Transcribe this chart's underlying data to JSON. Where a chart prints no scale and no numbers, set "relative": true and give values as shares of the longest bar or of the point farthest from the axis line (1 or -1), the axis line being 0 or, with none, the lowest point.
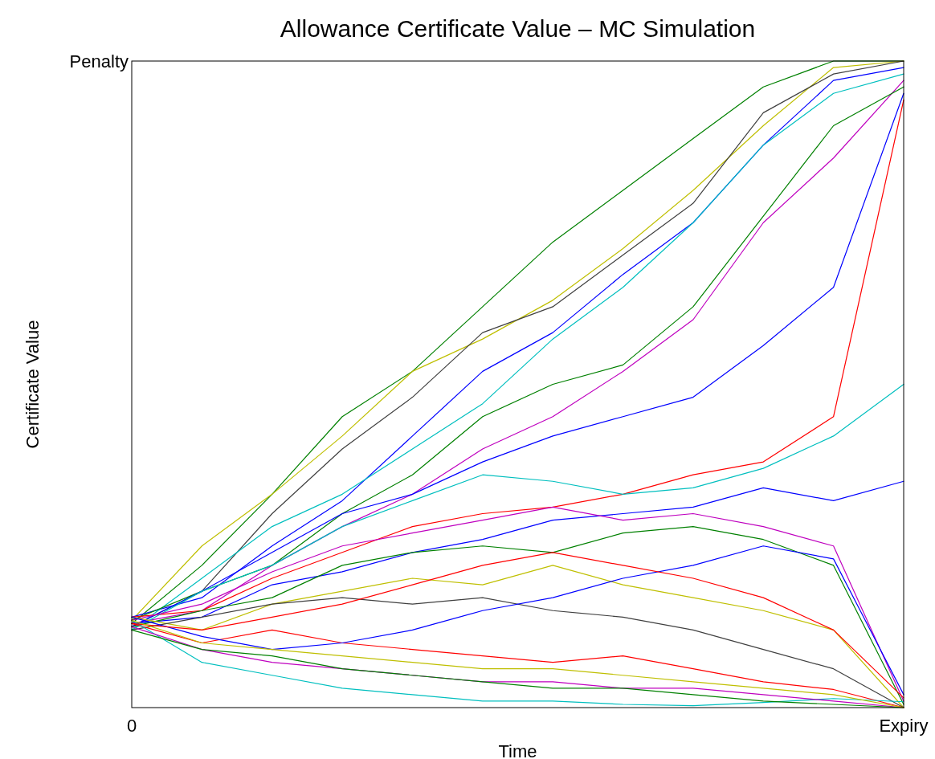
{
  "chart_data": {
    "type": "line",
    "title": "Allowance Certificate Value – MC Simulation",
    "xlabel": "Time",
    "ylabel": "Certificate Value",
    "relative": true,
    "categories": [
      "0",
      null,
      null,
      null,
      null,
      null,
      null,
      null,
      null,
      null,
      null,
      "Expiry"
    ],
    "annotations": [
      "Penalty"
    ],
    "line_style": "solid",
    "series": [
      {
        "color": "#008000",
        "values": [
          0.13,
          0.22,
          0.33,
          0.45,
          0.52,
          0.62,
          0.72,
          0.8,
          0.88,
          0.96,
          1,
          1
        ]
      },
      {
        "color": "#bfbf00",
        "values": [
          0.135,
          0.25,
          0.33,
          0.42,
          0.52,
          0.57,
          0.63,
          0.71,
          0.8,
          0.9,
          0.99,
          1
        ]
      },
      {
        "color": "#404040",
        "values": [
          0.125,
          0.18,
          0.3,
          0.4,
          0.48,
          0.58,
          0.62,
          0.7,
          0.78,
          0.92,
          0.98,
          1
        ]
      },
      {
        "color": "#0000ff",
        "values": [
          0.14,
          0.17,
          0.25,
          0.32,
          0.42,
          0.52,
          0.58,
          0.67,
          0.75,
          0.87,
          0.97,
          0.99
        ]
      },
      {
        "color": "#00bfbf",
        "values": [
          0.12,
          0.2,
          0.28,
          0.33,
          0.4,
          0.47,
          0.57,
          0.65,
          0.75,
          0.87,
          0.95,
          0.98
        ]
      },
      {
        "color": "#bf00bf",
        "values": [
          0.13,
          0.15,
          0.22,
          0.28,
          0.33,
          0.4,
          0.45,
          0.52,
          0.6,
          0.75,
          0.85,
          0.97
        ]
      },
      {
        "color": "#008000",
        "values": [
          0.135,
          0.18,
          0.22,
          0.3,
          0.36,
          0.45,
          0.5,
          0.53,
          0.62,
          0.76,
          0.9,
          0.96
        ]
      },
      {
        "color": "#0000ff",
        "values": [
          0.125,
          0.18,
          0.24,
          0.3,
          0.33,
          0.38,
          0.42,
          0.45,
          0.48,
          0.56,
          0.65,
          0.95
        ]
      },
      {
        "color": "#ff0000",
        "values": [
          0.14,
          0.15,
          0.2,
          0.24,
          0.28,
          0.3,
          0.31,
          0.33,
          0.36,
          0.38,
          0.45,
          0.94
        ]
      },
      {
        "color": "#00bfbf",
        "values": [
          0.12,
          0.18,
          0.22,
          0.28,
          0.32,
          0.36,
          0.35,
          0.33,
          0.34,
          0.37,
          0.42,
          0.5
        ]
      },
      {
        "color": "#0000ff",
        "values": [
          0.13,
          0.14,
          0.19,
          0.21,
          0.24,
          0.26,
          0.29,
          0.3,
          0.31,
          0.34,
          0.32,
          0.35
        ]
      },
      {
        "color": "#bf00bf",
        "values": [
          0.135,
          0.16,
          0.21,
          0.25,
          0.27,
          0.29,
          0.31,
          0.29,
          0.3,
          0.28,
          0.25,
          0.01
        ]
      },
      {
        "color": "#008000",
        "values": [
          0.125,
          0.15,
          0.17,
          0.22,
          0.24,
          0.25,
          0.24,
          0.27,
          0.28,
          0.26,
          0.22,
          0.005
        ]
      },
      {
        "color": "#bfbf00",
        "values": [
          0.14,
          0.12,
          0.16,
          0.18,
          0.2,
          0.19,
          0.22,
          0.19,
          0.17,
          0.15,
          0.12,
          0
        ]
      },
      {
        "color": "#404040",
        "values": [
          0.12,
          0.14,
          0.16,
          0.17,
          0.16,
          0.17,
          0.15,
          0.14,
          0.12,
          0.09,
          0.06,
          0
        ]
      },
      {
        "color": "#ff0000",
        "values": [
          0.13,
          0.1,
          0.12,
          0.1,
          0.09,
          0.08,
          0.07,
          0.08,
          0.06,
          0.04,
          0.028,
          0
        ]
      },
      {
        "color": "#00bfbf",
        "values": [
          0.135,
          0.07,
          0.05,
          0.03,
          0.02,
          0.01,
          0.01,
          0.005,
          0.003,
          0.008,
          0.014,
          0.009
        ]
      },
      {
        "color": "#bf00bf",
        "values": [
          0.125,
          0.09,
          0.07,
          0.06,
          0.05,
          0.04,
          0.04,
          0.03,
          0.03,
          0.02,
          0.01,
          0
        ]
      },
      {
        "color": "#0000ff",
        "values": [
          0.14,
          0.11,
          0.09,
          0.1,
          0.12,
          0.15,
          0.17,
          0.2,
          0.22,
          0.25,
          0.23,
          0.02
        ]
      },
      {
        "color": "#008000",
        "values": [
          0.12,
          0.09,
          0.08,
          0.06,
          0.05,
          0.04,
          0.03,
          0.03,
          0.02,
          0.01,
          0.005,
          0
        ]
      },
      {
        "color": "#ff0000",
        "values": [
          0.13,
          0.12,
          0.14,
          0.16,
          0.19,
          0.22,
          0.24,
          0.22,
          0.2,
          0.17,
          0.12,
          0.015
        ]
      },
      {
        "color": "#bfbf00",
        "values": [
          0.135,
          0.1,
          0.09,
          0.08,
          0.07,
          0.06,
          0.06,
          0.05,
          0.04,
          0.03,
          0.02,
          0
        ]
      }
    ]
  }
}
